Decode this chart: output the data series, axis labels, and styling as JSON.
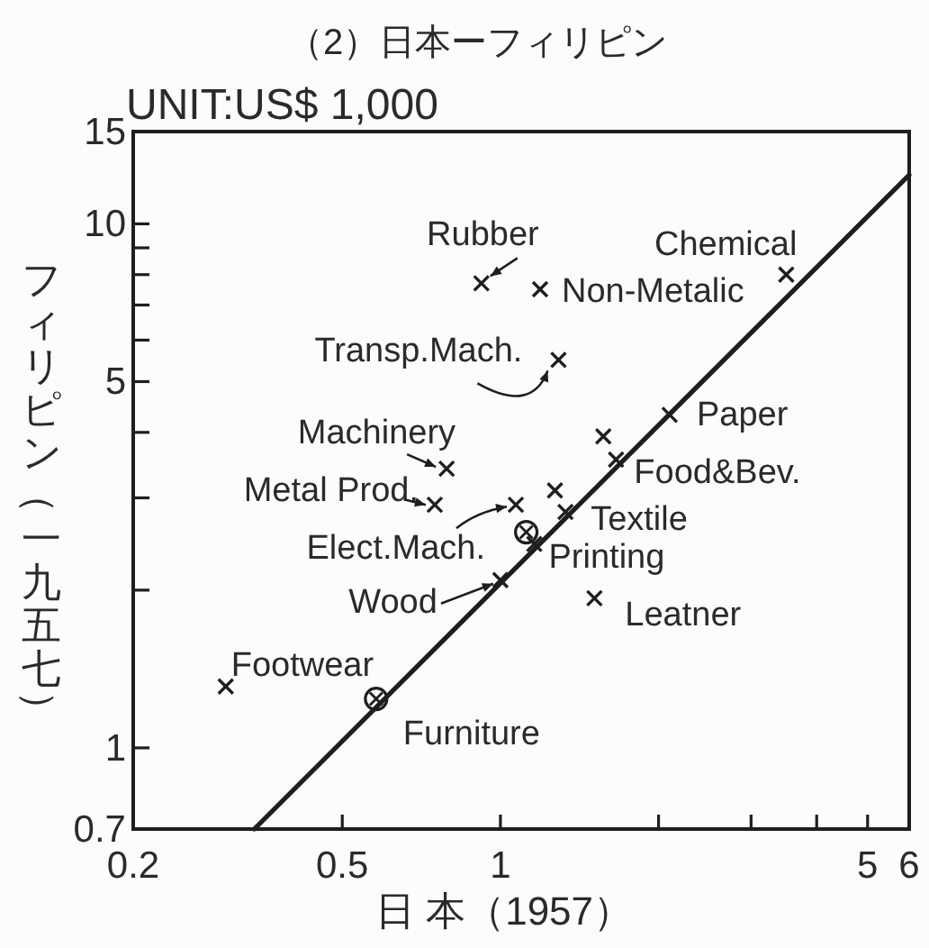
{
  "chart_data": {
    "type": "scatter",
    "title": "（2）日本ーフィリピン",
    "subtitle": "UNIT:US$ 1,000",
    "xlabel": "日 本（1957）",
    "ylabel": "フィリピン（一九五七）",
    "log": "xy",
    "xlim": [
      0.2,
      6
    ],
    "ylim": [
      0.7,
      15
    ],
    "xticks": [
      0.2,
      0.5,
      1,
      {
        "value": 2,
        "label": null
      },
      {
        "value": 3,
        "label": null
      },
      {
        "value": 4,
        "label": null
      },
      5,
      6
    ],
    "yticks": [
      0.7,
      1,
      {
        "value": 2,
        "label": null
      },
      {
        "value": 3,
        "label": null
      },
      {
        "value": 4,
        "label": null
      },
      5,
      {
        "value": 6,
        "label": null
      },
      {
        "value": 7,
        "label": null
      },
      {
        "value": 8,
        "label": null
      },
      {
        "value": 9,
        "label": null
      },
      10,
      15
    ],
    "series": [
      {
        "marker": "cross",
        "color": "#1e1e1e",
        "x": [
          0.92,
          1.19,
          3.5,
          1.29,
          0.79,
          0.75,
          1.07,
          1.16,
          1.0,
          1.51,
          2.1,
          1.66,
          1.33,
          0.3,
          1.57,
          1.27
        ],
        "values": [
          7.7,
          7.5,
          8.0,
          5.5,
          3.41,
          2.91,
          2.91,
          2.45,
          2.09,
          1.93,
          4.32,
          3.55,
          2.82,
          1.31,
          3.93,
          3.1
        ]
      },
      {
        "marker": "circle",
        "color": "#1e1e1e",
        "x": [
          0.58,
          1.12
        ],
        "values": [
          1.24,
          2.58
        ]
      },
      {
        "type": "line",
        "color": "#1e1e1e",
        "x": [
          0.34,
          6
        ],
        "values": [
          0.7,
          12.4
        ]
      }
    ],
    "annotations": [
      {
        "text": "Rubber",
        "x": 0.92,
        "y": 7.7
      },
      {
        "text": "Chemical",
        "x": 3.5,
        "y": 8.0
      },
      {
        "text": "Non-Metalic",
        "x": 1.19,
        "y": 7.5
      },
      {
        "text": "Transp.Mach.",
        "x": 1.29,
        "y": 5.5
      },
      {
        "text": "Machinery",
        "x": 0.79,
        "y": 3.41
      },
      {
        "text": "Metal Prod.",
        "x": 0.75,
        "y": 2.91
      },
      {
        "text": "Elect.Mach.",
        "x": 1.07,
        "y": 2.91
      },
      {
        "text": "Printing",
        "x": 1.16,
        "y": 2.45
      },
      {
        "text": "Wood",
        "x": 1.0,
        "y": 2.09
      },
      {
        "text": "Leatner",
        "x": 1.51,
        "y": 1.93
      },
      {
        "text": "Paper",
        "x": 2.1,
        "y": 4.32
      },
      {
        "text": "Food&Bev.",
        "x": 1.66,
        "y": 3.55
      },
      {
        "text": "Textile",
        "x": 1.33,
        "y": 2.82
      },
      {
        "text": "Footwear",
        "x": 0.3,
        "y": 1.31
      },
      {
        "text": "Furniture",
        "x": 0.58,
        "y": 1.24
      }
    ]
  }
}
